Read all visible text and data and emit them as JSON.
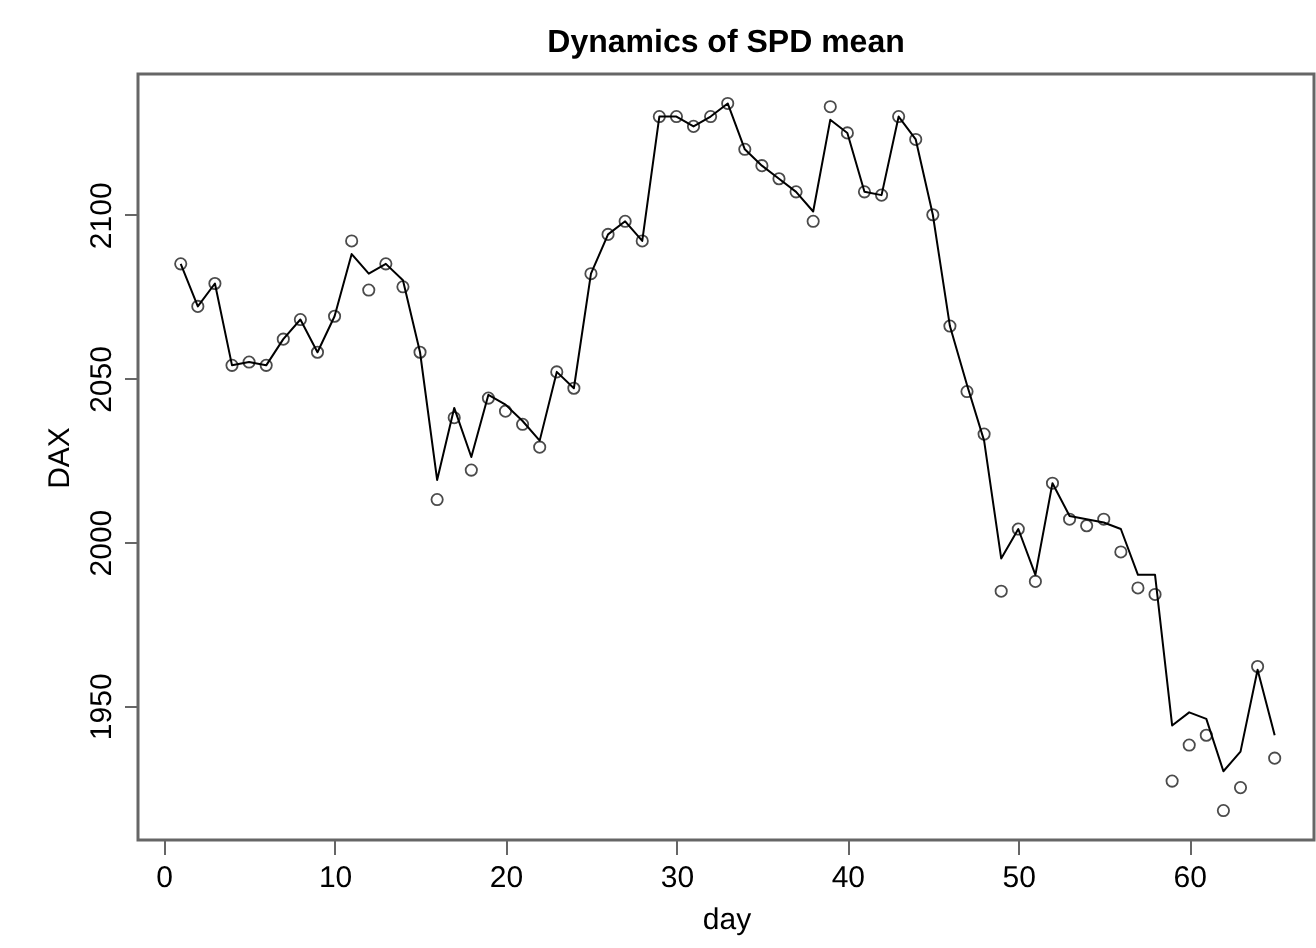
{
  "chart_data": {
    "type": "line",
    "title": "Dynamics of SPD mean",
    "xlabel": "day",
    "ylabel": "DAX",
    "x": [
      1,
      2,
      3,
      4,
      5,
      6,
      7,
      8,
      9,
      10,
      11,
      12,
      13,
      14,
      15,
      16,
      17,
      18,
      19,
      20,
      21,
      22,
      23,
      24,
      25,
      26,
      27,
      28,
      29,
      30,
      31,
      32,
      33,
      34,
      35,
      36,
      37,
      38,
      39,
      40,
      41,
      42,
      43,
      44,
      45,
      46,
      47,
      48,
      49,
      50,
      51,
      52,
      53,
      54,
      55,
      56,
      57,
      58,
      59,
      60,
      61,
      62,
      63,
      64,
      65
    ],
    "series": [
      {
        "type": "scatter",
        "color": "#000000",
        "marker": "circle",
        "values": [
          2085,
          2072,
          2079,
          2054,
          2055,
          2054,
          2062,
          2068,
          2058,
          2069,
          2092,
          2077,
          2085,
          2078,
          2058,
          2013,
          2038,
          2022,
          2044,
          2040,
          2036,
          2029,
          2052,
          2047,
          2082,
          2094,
          2098,
          2092,
          2130,
          2130,
          2127,
          2130,
          2134,
          2120,
          2115,
          2111,
          2107,
          2098,
          2133,
          2125,
          2107,
          2106,
          2130,
          2123,
          2100,
          2066,
          2046,
          2033,
          1985,
          2004,
          1988,
          2018,
          2007,
          2005,
          2007,
          1997,
          1986,
          1984,
          1927,
          1938,
          1941,
          1918,
          1925,
          1962,
          1934
        ]
      },
      {
        "type": "line",
        "color": "#000000",
        "marker": "none",
        "values": [
          2085,
          2072,
          2079,
          2054,
          2055,
          2054,
          2062,
          2068,
          2058,
          2069,
          2088,
          2082,
          2085,
          2080,
          2058,
          2019,
          2041,
          2026,
          2045,
          2042,
          2037,
          2031,
          2052,
          2047,
          2082,
          2094,
          2098,
          2092,
          2130,
          2130,
          2127,
          2130,
          2134,
          2120,
          2115,
          2111,
          2107,
          2101,
          2129,
          2125,
          2107,
          2106,
          2130,
          2123,
          2100,
          2066,
          2048,
          2031,
          1995,
          2004,
          1990,
          2018,
          2008,
          2007,
          2006,
          2004,
          1990,
          1990,
          1944,
          1948,
          1946,
          1930,
          1936,
          1961,
          1941
        ]
      }
    ],
    "xlim": [
      -1.5,
      67.3
    ],
    "xticks": [
      0,
      10,
      20,
      30,
      40,
      50,
      60
    ],
    "ylim": [
      1909,
      2143
    ],
    "yticks": [
      1950,
      2000,
      2050,
      2100
    ],
    "grid": false
  }
}
